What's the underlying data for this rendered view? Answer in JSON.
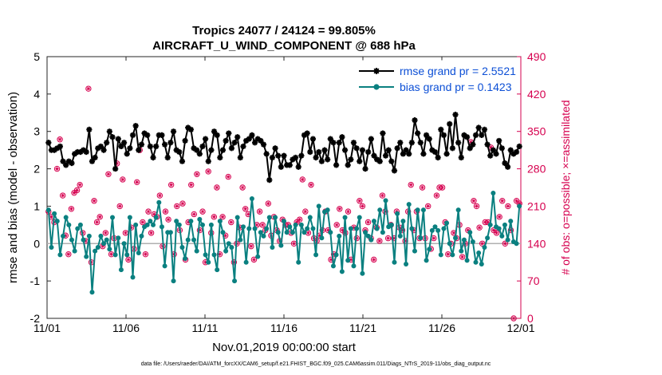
{
  "chart_data": {
    "type": "line",
    "title_line1": "Tropics 24077 / 24124 = 99.805%",
    "title_line2": "AIRCRAFT_U_WIND_COMPONENT @ 688 hPa",
    "xlabel": "Nov.01,2019 00:00:00 start",
    "ylabel": "rmse and bias (model - observation)",
    "y2label": "# of obs: o=possible; ×=assimilated",
    "footer": "data file: /Users/raeder/DAI/ATM_forcXX/CAM6_setup/f.e21.FHIST_BGC.f09_025.CAM6assim.011/Diags_NTrS_2019-11/obs_diag_output.nc",
    "xlim": [
      0,
      30
    ],
    "ylim": [
      -2,
      5
    ],
    "y2lim": [
      0,
      490
    ],
    "x_ticks": [
      0,
      5,
      10,
      15,
      20,
      25,
      30
    ],
    "x_tick_labels": [
      "11/01",
      "11/06",
      "11/11",
      "11/16",
      "11/21",
      "11/26",
      "12/01"
    ],
    "y_ticks": [
      -2,
      -1,
      0,
      1,
      2,
      3,
      4,
      5
    ],
    "y_tick_labels": [
      "-2",
      "-1",
      "0",
      "1",
      "2",
      "3",
      "4",
      "5"
    ],
    "y2_ticks": [
      0,
      70,
      140,
      210,
      280,
      350,
      420,
      490
    ],
    "y2_tick_labels": [
      "0",
      "70",
      "140",
      "210",
      "280",
      "350",
      "420",
      "490"
    ],
    "series": [
      {
        "name": "rmse grand pr = 2.5521",
        "color": "#000000",
        "marker": "star",
        "values": [
          2.7,
          2.5,
          2.5,
          2.55,
          2.6,
          2.2,
          2.1,
          2.2,
          2.15,
          2.4,
          2.45,
          2.45,
          2.5,
          2.45,
          3.05,
          2.2,
          2.3,
          2.55,
          2.6,
          2.5,
          2.7,
          3.0,
          2.85,
          2.0,
          2.8,
          2.6,
          2.7,
          2.4,
          2.55,
          2.9,
          3.15,
          2.5,
          2.65,
          2.95,
          2.9,
          2.6,
          2.3,
          2.6,
          2.9,
          2.9,
          2.65,
          2.3,
          2.7,
          3.0,
          2.5,
          2.45,
          2.2,
          2.75,
          3.1,
          3.05,
          2.55,
          2.5,
          2.4,
          2.6,
          2.8,
          2.2,
          2.5,
          3.0,
          2.9,
          2.3,
          2.5,
          2.75,
          2.95,
          2.55,
          2.7,
          2.85,
          2.3,
          2.6,
          2.75,
          2.8,
          2.9,
          2.7,
          2.8,
          2.75,
          2.65,
          2.4,
          1.7,
          2.3,
          2.55,
          2.35,
          2.05,
          2.35,
          2.1,
          2.1,
          2.25,
          2.3,
          2.05,
          2.35,
          2.9,
          2.95,
          2.45,
          2.8,
          2.3,
          2.45,
          2.2,
          2.5,
          2.25,
          2.8,
          2.7,
          2.1,
          2.7,
          2.85,
          2.5,
          2.1,
          2.25,
          2.7,
          2.55,
          2.2,
          2.5,
          2.0,
          2.45,
          2.8,
          2.35,
          2.25,
          2.2,
          2.95,
          2.35,
          2.5,
          2.2,
          1.95,
          2.55,
          2.7,
          2.4,
          2.5,
          2.4,
          2.7,
          3.3,
          2.95,
          2.7,
          2.4,
          2.9,
          2.8,
          2.5,
          2.45,
          2.3,
          3.05,
          2.9,
          2.4,
          3.2,
          2.55,
          3.45,
          2.7,
          2.3,
          2.9,
          2.85,
          2.55,
          2.65,
          2.9,
          3.1,
          2.9,
          3.05,
          2.65,
          2.35,
          2.5,
          2.4,
          2.75,
          2.55,
          2.15,
          2.05,
          2.5,
          2.4,
          2.45,
          2.6
        ]
      },
      {
        "name": "bias grand pr = 0.1423",
        "color": "#0a8080",
        "marker": "circle",
        "values": [
          0.9,
          -0.1,
          0.8,
          0.6,
          -0.3,
          0.2,
          0.7,
          0.5,
          0.1,
          -0.2,
          0.4,
          0.5,
          0.1,
          -0.35,
          0.2,
          -1.3,
          -0.2,
          -0.1,
          0.2,
          0.0,
          0.1,
          -0.15,
          0.7,
          -0.3,
          0.15,
          -0.7,
          0.0,
          -0.3,
          0.7,
          -0.9,
          0.5,
          -0.25,
          0.2,
          0.45,
          0.5,
          0.6,
          0.5,
          0.7,
          1.1,
          0.45,
          -0.6,
          0.3,
          0.3,
          -1.0,
          0.6,
          0.5,
          -0.1,
          -0.4,
          0.1,
          0.6,
          0.1,
          -0.2,
          0.65,
          0.5,
          -0.3,
          -0.5,
          0.5,
          -0.3,
          -0.7,
          0.6,
          0.3,
          -0.2,
          0.0,
          -0.1,
          -1.0,
          0.7,
          0.1,
          0.45,
          -0.5,
          0.4,
          1.2,
          0.4,
          -0.35,
          0.3,
          0.2,
          0.4,
          0.7,
          -0.1,
          0.7,
          0.3,
          -0.05,
          0.6,
          0.3,
          0.45,
          0.3,
          0.5,
          -0.5,
          0.5,
          0.3,
          0.4,
          0.7,
          0.4,
          -0.3,
          1.0,
          0.15,
          0.85,
          0.9,
          0.3,
          -0.6,
          -0.3,
          0.2,
          -0.75,
          0.7,
          -0.45,
          0.4,
          -0.6,
          0.4,
          0.7,
          -0.8,
          0.3,
          0.2,
          0.1,
          0.6,
          0.4,
          0.9,
          0.3,
          1.15,
          0.45,
          0.5,
          -0.5,
          0.8,
          0.2,
          0.6,
          -0.55,
          1.05,
          0.4,
          -0.2,
          0.9,
          0.15,
          0.9,
          -0.45,
          -0.15,
          0.35,
          0.45,
          0.35,
          -0.3,
          0.4,
          0.55,
          0.0,
          -0.3,
          0.15,
          0.9,
          -0.2,
          0.1,
          -0.45,
          0.3,
          0.05,
          -0.5,
          -0.25,
          -0.55,
          -0.1,
          0.15,
          0.5,
          1.35,
          0.45,
          0.4,
          0.2,
          0.5,
          0.1,
          0.6,
          0.05,
          0.0,
          1.0
        ]
      }
    ],
    "obs_count_series": {
      "name": "# of obs",
      "color": "#d6004f",
      "marker": "circle-star",
      "values": [
        200,
        190,
        180,
        280,
        335,
        230,
        155,
        120,
        205,
        235,
        240,
        250,
        160,
        145,
        430,
        105,
        220,
        180,
        190,
        135,
        160,
        270,
        120,
        150,
        290,
        210,
        260,
        160,
        110,
        170,
        130,
        255,
        315,
        180,
        120,
        200,
        160,
        195,
        190,
        230,
        135,
        200,
        185,
        250,
        120,
        210,
        165,
        215,
        110,
        180,
        250,
        195,
        270,
        165,
        200,
        105,
        275,
        160,
        190,
        245,
        120,
        190,
        155,
        265,
        180,
        105,
        140,
        170,
        245,
        205,
        195,
        135,
        110,
        175,
        200,
        175,
        165,
        215,
        155,
        190,
        165,
        145,
        185,
        175,
        175,
        160,
        140,
        180,
        185,
        260,
        200,
        160,
        250,
        150,
        145,
        155,
        165,
        200,
        165,
        110,
        120,
        175,
        205,
        165,
        160,
        200,
        110,
        170,
        150,
        220,
        210,
        165,
        180,
        150,
        110,
        170,
        145,
        230,
        200,
        150,
        175,
        150,
        200,
        170,
        165,
        145,
        200,
        250,
        165,
        200,
        150,
        245,
        150,
        210,
        130,
        150,
        230,
        245,
        245,
        180,
        120,
        140,
        160,
        150,
        175,
        115,
        140,
        165,
        330,
        220,
        210,
        170,
        140,
        180,
        180,
        320,
        165,
        160,
        190,
        220,
        140,
        210,
        165,
        0,
        220,
        215
      ]
    },
    "legend_position": "top-right",
    "zero_line": true,
    "grid": false
  }
}
